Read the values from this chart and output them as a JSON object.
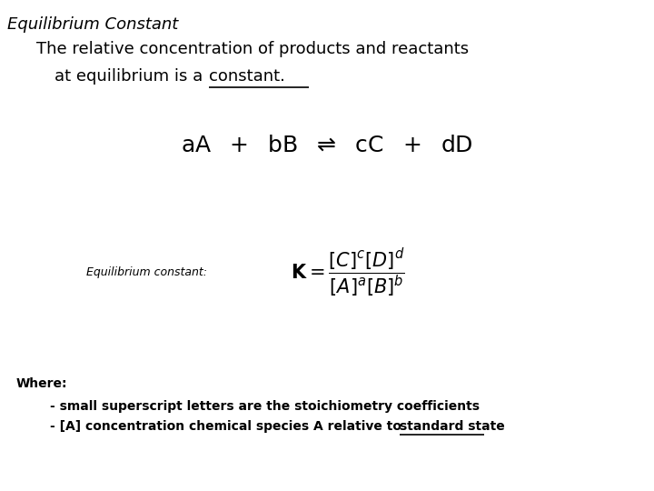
{
  "bg_color": "#ffffff",
  "title_italic": "Equilibrium Constant",
  "subtitle_line1": "The relative concentration of products and reactants",
  "subtitle_line2_prefix": "at equilibrium is a ",
  "subtitle_line2_underline": "constant.",
  "eq_label": "Equilibrium constant:",
  "where_label": "Where:",
  "bullet1": "- small superscript letters are the stoichiometry coefficients",
  "bullet2_prefix": "- [A] concentration chemical species A relative to ",
  "bullet2_underline": "standard state",
  "title_fontsize": 13,
  "subtitle_fontsize": 13,
  "eq_label_fontsize": 9,
  "keq_fontsize": 15,
  "where_fontsize": 10,
  "bullet_fontsize": 10,
  "reaction_fontsize": 18
}
